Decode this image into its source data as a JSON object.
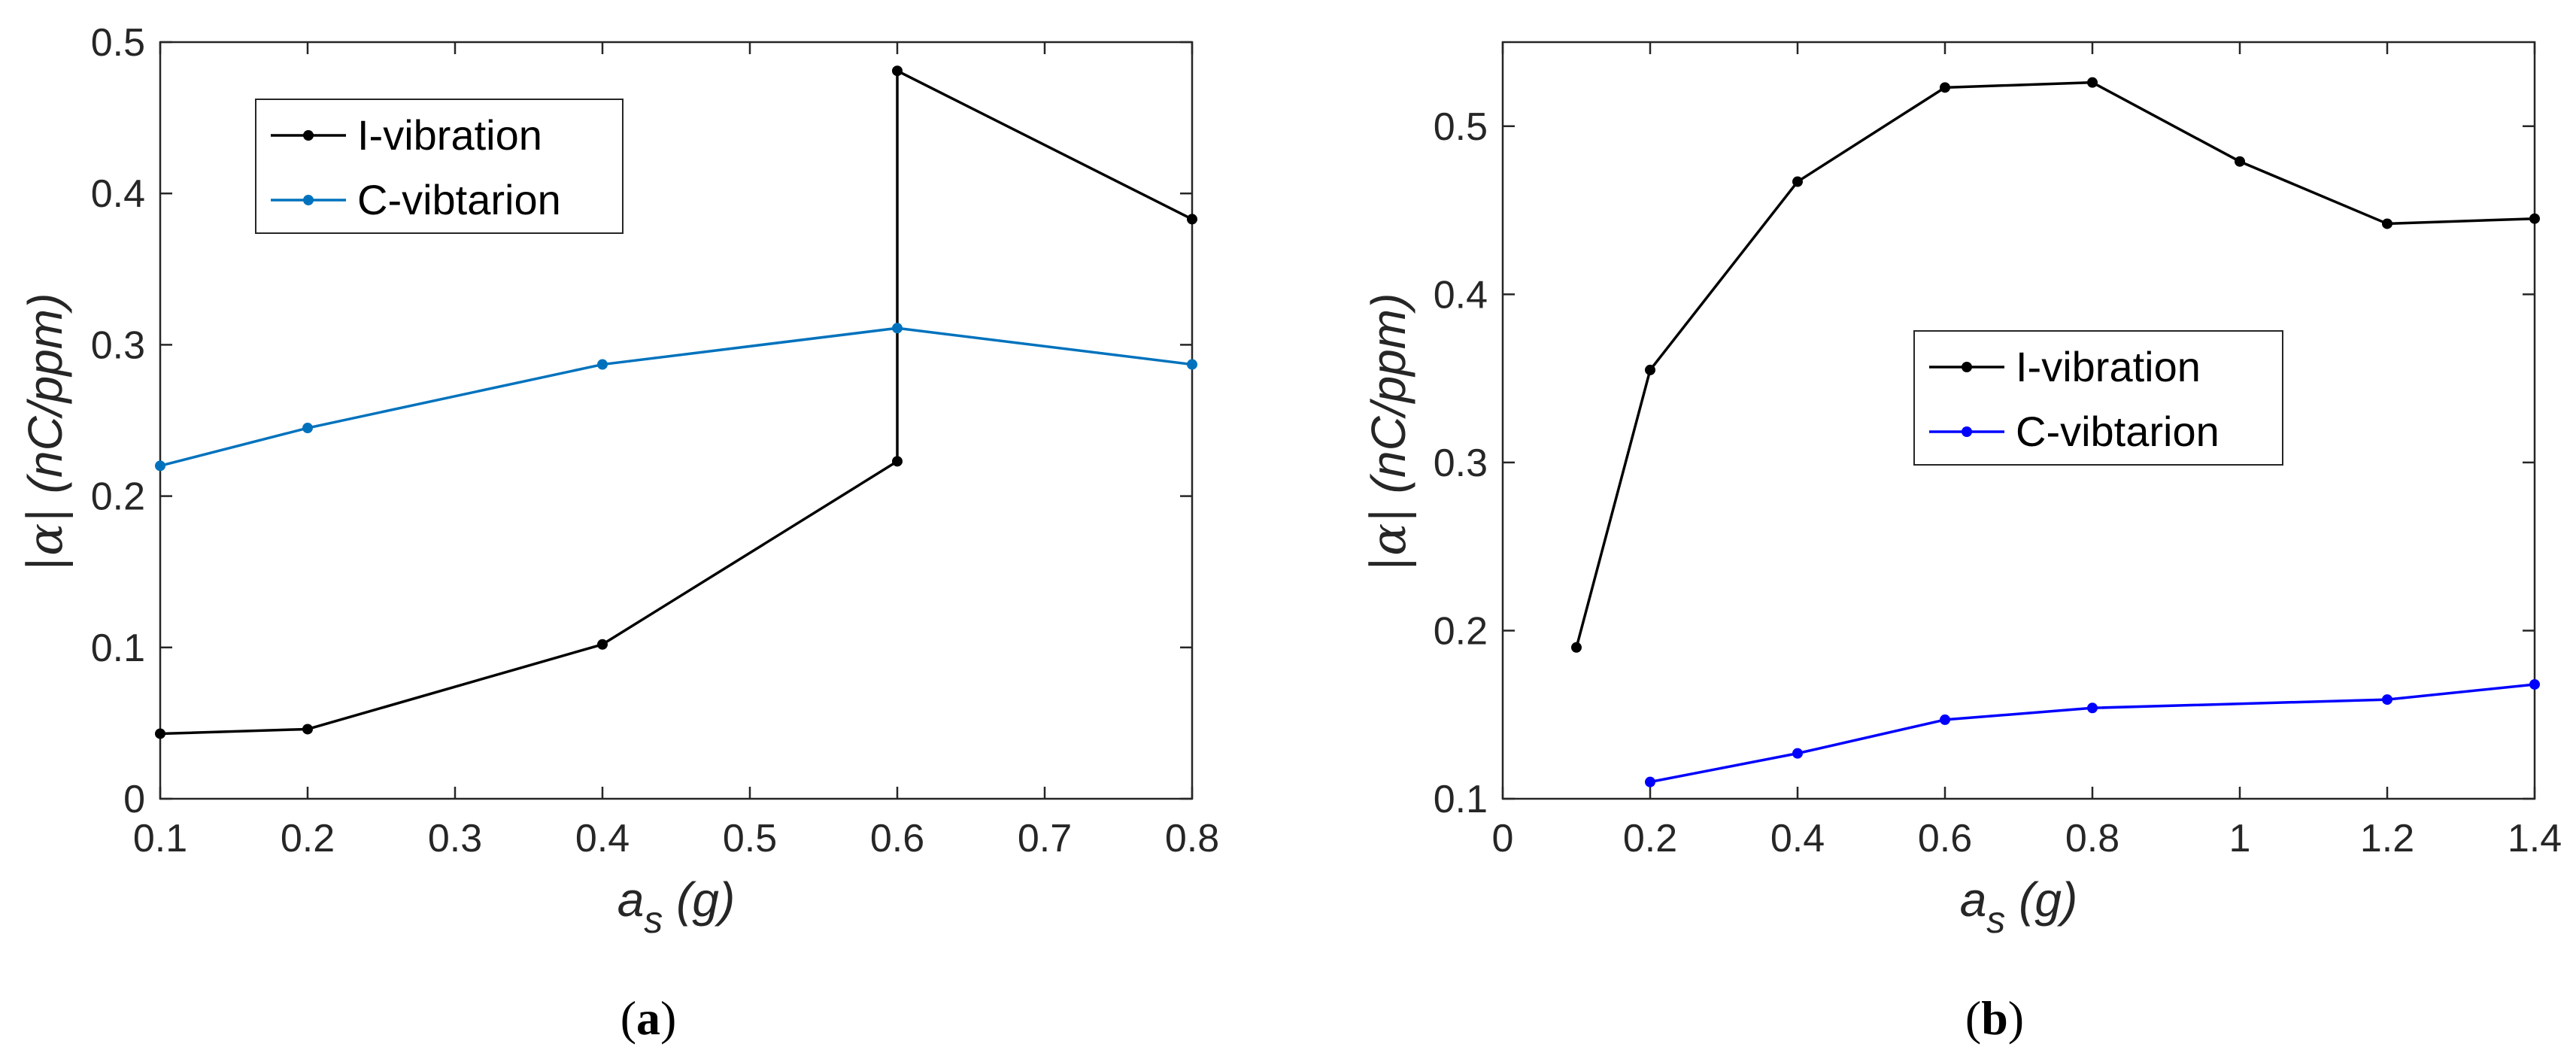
{
  "chart_data": [
    {
      "type": "line",
      "panel_label": "(a)",
      "panel_letter": "a",
      "xlabel_base": "a",
      "xlabel_sub": "s",
      "xlabel_unit": " (g)",
      "ylabel_sym": "|α|",
      "ylabel_unit": " (nC/ppm)",
      "xlim": [
        0.1,
        0.8
      ],
      "ylim": [
        0,
        0.5
      ],
      "xticks": [
        0.1,
        0.2,
        0.3,
        0.4,
        0.5,
        0.6,
        0.7,
        0.8
      ],
      "xtick_labels": [
        "0.1",
        "0.2",
        "0.3",
        "0.4",
        "0.5",
        "0.6",
        "0.7",
        "0.8"
      ],
      "yticks": [
        0,
        0.1,
        0.2,
        0.3,
        0.4,
        0.5
      ],
      "ytick_labels": [
        "0",
        "0.1",
        "0.2",
        "0.3",
        "0.4",
        "0.5"
      ],
      "legend_position": "top-left",
      "series": [
        {
          "name": "I-vibration",
          "color": "#000000",
          "x": [
            0.1,
            0.2,
            0.4,
            0.6,
            0.6,
            0.8
          ],
          "y": [
            0.043,
            0.046,
            0.102,
            0.223,
            0.481,
            0.383
          ]
        },
        {
          "name": "C-vibtarion",
          "color": "#0072BD",
          "x": [
            0.1,
            0.2,
            0.4,
            0.6,
            0.8
          ],
          "y": [
            0.22,
            0.245,
            0.287,
            0.311,
            0.287
          ]
        }
      ]
    },
    {
      "type": "line",
      "panel_label": "(b)",
      "panel_letter": "b",
      "xlabel_base": "a",
      "xlabel_sub": "s",
      "xlabel_unit": " (g)",
      "ylabel_sym": "|α|",
      "ylabel_unit": " (nC/ppm)",
      "xlim": [
        0,
        1.4
      ],
      "ylim": [
        0.1,
        0.55
      ],
      "xticks": [
        0,
        0.2,
        0.4,
        0.6,
        0.8,
        1,
        1.2,
        1.4
      ],
      "xtick_labels": [
        "0",
        "0.2",
        "0.4",
        "0.6",
        "0.8",
        "1",
        "1.2",
        "1.4"
      ],
      "yticks": [
        0.1,
        0.2,
        0.3,
        0.4,
        0.5
      ],
      "ytick_labels": [
        "0.1",
        "0.2",
        "0.3",
        "0.4",
        "0.5"
      ],
      "legend_position": "center-right",
      "series": [
        {
          "name": "I-vibration",
          "color": "#000000",
          "x": [
            0.1,
            0.2,
            0.4,
            0.6,
            0.8,
            1.0,
            1.2,
            1.4
          ],
          "y": [
            0.19,
            0.355,
            0.467,
            0.523,
            0.526,
            0.479,
            0.442,
            0.445
          ]
        },
        {
          "name": "C-vibtarion",
          "color": "#0000FF",
          "x": [
            0.2,
            0.4,
            0.6,
            0.8,
            1.2,
            1.4
          ],
          "y": [
            0.11,
            0.127,
            0.147,
            0.154,
            0.159,
            0.168
          ]
        }
      ]
    }
  ]
}
